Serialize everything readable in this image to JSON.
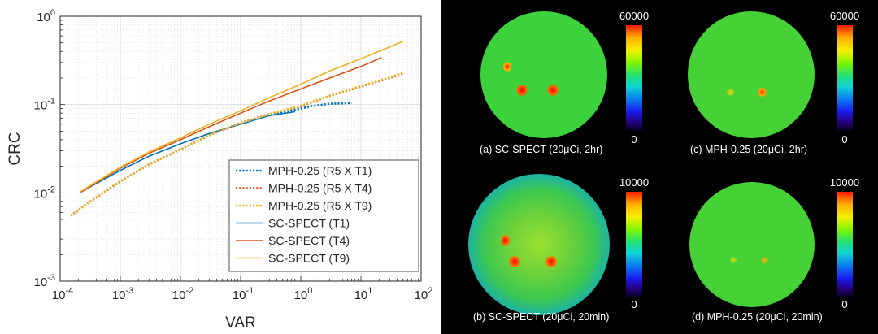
{
  "chart_data": {
    "type": "line",
    "xlabel": "VAR",
    "ylabel": "CRC",
    "xscale": "log",
    "yscale": "log",
    "xlim": [
      0.0001,
      100
    ],
    "ylim": [
      0.001,
      1
    ],
    "grid": true,
    "legend_position": "bottom-right",
    "x_tick_labels": [
      "10-4",
      "10-3",
      "10-2",
      "10-1",
      "100",
      "101",
      "102"
    ],
    "y_tick_labels": [
      "100",
      "10-1",
      "10-2",
      "10-3"
    ],
    "series": [
      {
        "name": "MPH-0.25 (R5 X T1)",
        "color": "#0072BD",
        "style": "dotted",
        "points": [
          [
            0.00015,
            0.0055
          ],
          [
            0.0003,
            0.0078
          ],
          [
            0.001,
            0.0135
          ],
          [
            0.003,
            0.021
          ],
          [
            0.01,
            0.031
          ],
          [
            0.03,
            0.045
          ],
          [
            0.1,
            0.062
          ],
          [
            0.3,
            0.077
          ],
          [
            0.8,
            0.087
          ],
          [
            1.5,
            0.096
          ],
          [
            3,
            0.102
          ],
          [
            7,
            0.104
          ]
        ]
      },
      {
        "name": "MPH-0.25 (R5 X T4)",
        "color": "#D95319",
        "style": "dotted",
        "points": [
          [
            0.00015,
            0.0055
          ],
          [
            0.0003,
            0.0078
          ],
          [
            0.001,
            0.0135
          ],
          [
            0.003,
            0.021
          ],
          [
            0.01,
            0.031
          ],
          [
            0.03,
            0.045
          ],
          [
            0.1,
            0.062
          ],
          [
            0.3,
            0.078
          ],
          [
            1,
            0.096
          ],
          [
            3,
            0.125
          ],
          [
            10,
            0.16
          ],
          [
            30,
            0.2
          ],
          [
            50,
            0.225
          ]
        ]
      },
      {
        "name": "MPH-0.25 (R5 X T9)",
        "color": "#EDB120",
        "style": "dotted",
        "points": [
          [
            0.00015,
            0.0055
          ],
          [
            0.0003,
            0.0078
          ],
          [
            0.001,
            0.0135
          ],
          [
            0.003,
            0.021
          ],
          [
            0.01,
            0.031
          ],
          [
            0.03,
            0.045
          ],
          [
            0.1,
            0.062
          ],
          [
            0.3,
            0.078
          ],
          [
            1,
            0.097
          ],
          [
            3,
            0.126
          ],
          [
            10,
            0.162
          ],
          [
            30,
            0.203
          ],
          [
            50,
            0.23
          ]
        ]
      },
      {
        "name": "SC-SPECT (T1)",
        "color": "#0072BD",
        "style": "solid",
        "points": [
          [
            0.00022,
            0.0102
          ],
          [
            0.001,
            0.018
          ],
          [
            0.003,
            0.026
          ],
          [
            0.01,
            0.036
          ],
          [
            0.03,
            0.047
          ],
          [
            0.1,
            0.06
          ],
          [
            0.3,
            0.075
          ],
          [
            0.8,
            0.083
          ]
        ]
      },
      {
        "name": "SC-SPECT (T4)",
        "color": "#D95319",
        "style": "solid",
        "points": [
          [
            0.00022,
            0.0102
          ],
          [
            0.001,
            0.019
          ],
          [
            0.003,
            0.028
          ],
          [
            0.01,
            0.04
          ],
          [
            0.03,
            0.056
          ],
          [
            0.1,
            0.08
          ],
          [
            0.3,
            0.11
          ],
          [
            1,
            0.15
          ],
          [
            3,
            0.2
          ],
          [
            10,
            0.27
          ],
          [
            22,
            0.34
          ]
        ]
      },
      {
        "name": "SC-SPECT (T9)",
        "color": "#EDB120",
        "style": "solid",
        "points": [
          [
            0.00022,
            0.0104
          ],
          [
            0.001,
            0.0195
          ],
          [
            0.003,
            0.029
          ],
          [
            0.01,
            0.042
          ],
          [
            0.03,
            0.06
          ],
          [
            0.1,
            0.085
          ],
          [
            0.3,
            0.12
          ],
          [
            1,
            0.17
          ],
          [
            3,
            0.24
          ],
          [
            10,
            0.33
          ],
          [
            30,
            0.45
          ],
          [
            50,
            0.52
          ]
        ]
      }
    ]
  },
  "panels": [
    {
      "caption": "(a)  SC-SPECT (20μCi, 2hr)",
      "cb_max": "60000",
      "cb_min": "0"
    },
    {
      "caption": "(c)  MPH-0.25 (20μCi, 2hr)",
      "cb_max": "60000",
      "cb_min": "0"
    },
    {
      "caption": "(b) SC-SPECT (20μCi, 20min)",
      "cb_max": "10000",
      "cb_min": "0"
    },
    {
      "caption": "(d)  MPH-0.25 (20μCi, 20min)",
      "cb_max": "10000",
      "cb_min": "0"
    }
  ]
}
